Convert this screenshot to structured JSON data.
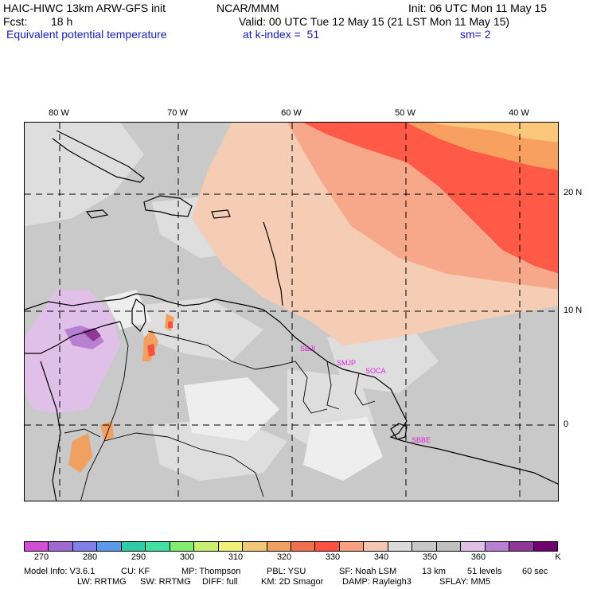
{
  "header": {
    "model": "HAIC-HIWC 13km ARW-GFS init",
    "org": "NCAR/MMM",
    "init": "Init: 06 UTC Mon 11 May 15",
    "fcst_label": "Fcst:",
    "fcst_value": "18 h",
    "valid": "Valid: 00 UTC Tue 12 May 15 (21 LST Mon 11 May 15)",
    "field": "Equivalent potential temperature",
    "level": "at k-index =  51",
    "smooth": "sm= 2"
  },
  "map": {
    "longitude_labels": [
      "80 W",
      "70 W",
      "60 W",
      "50 W",
      "40 W"
    ],
    "latitude_labels": [
      "20 N",
      "10 N",
      "0"
    ],
    "station_labels": [
      "SBJI",
      "SMJP",
      "SOCA",
      "SBBE"
    ],
    "colors": {
      "background": "#c9c9c9",
      "station": "#e020e0",
      "grid": "#000000",
      "coast": "#000000"
    }
  },
  "colorbar": {
    "tick_labels": [
      "270",
      "280",
      "290",
      "300",
      "310",
      "320",
      "330",
      "340",
      "350",
      "360",
      "K"
    ],
    "colors": [
      "#d44ed4",
      "#a068d0",
      "#8080e8",
      "#5a9ae8",
      "#30cca8",
      "#40e0a0",
      "#80ec70",
      "#c8f070",
      "#f0f078",
      "#f0c878",
      "#f0a060",
      "#f07050",
      "#ff5040",
      "#f8a080",
      "#f4c8b0",
      "#dcdcdc",
      "#c8c8c8",
      "#c0c0c0",
      "#e0c0e8",
      "#b880d0",
      "#903898",
      "#700070"
    ]
  },
  "footer": {
    "line1": [
      "Model Info: V3.6.1",
      "CU: KF",
      "MP: Thompson",
      "PBL: YSU",
      "SF: Noah LSM",
      "13 km",
      "51 levels",
      "60 sec"
    ],
    "line2": [
      "LW: RRTMG",
      "SW: RRTMG",
      "DIFF: full",
      "KM: 2D Smagor",
      "DAMP: Rayleigh3",
      "SFLAY: MM5"
    ]
  }
}
